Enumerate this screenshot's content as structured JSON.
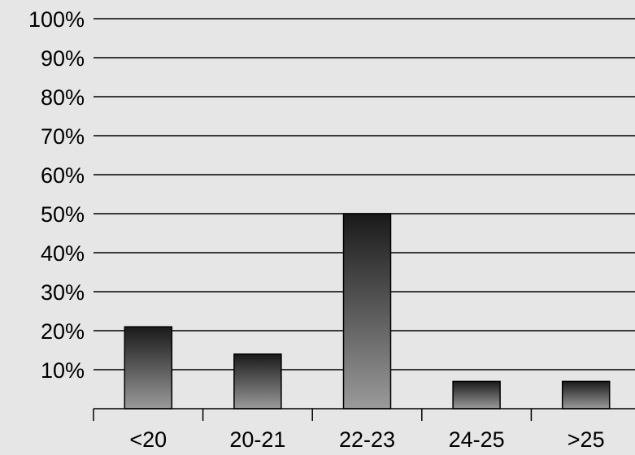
{
  "chart_data": {
    "type": "bar",
    "categories": [
      "<20",
      "20-21",
      "22-23",
      "24-25",
      ">25"
    ],
    "values": [
      21,
      14,
      50,
      7,
      7
    ],
    "ylim": [
      0,
      100
    ],
    "yticks": [
      10,
      20,
      30,
      40,
      50,
      60,
      70,
      80,
      90,
      100
    ],
    "ytick_labels": [
      "10%",
      "20%",
      "30%",
      "40%",
      "50%",
      "60%",
      "70%",
      "80%",
      "90%",
      "100%"
    ],
    "grid": true,
    "legend": "none",
    "colors": {
      "background": "#e6e6e6",
      "bar_top": "#1a1a1a",
      "bar_bottom": "#9a9a9a",
      "lines": "#000000"
    }
  }
}
